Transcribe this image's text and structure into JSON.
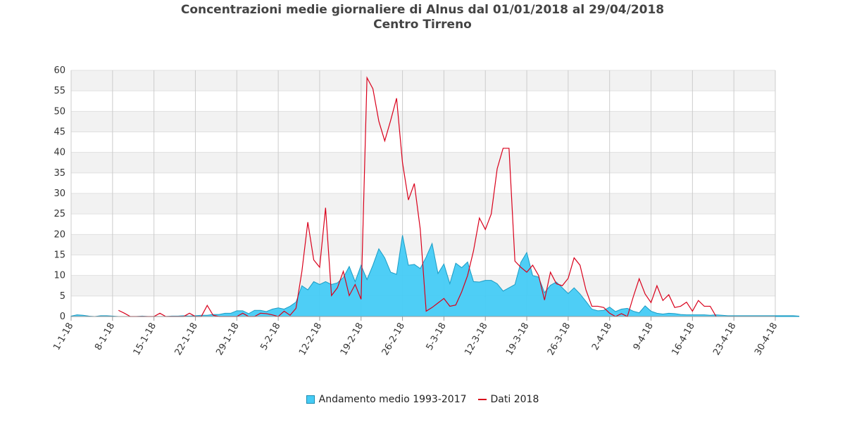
{
  "chart_data": {
    "type": "area",
    "title": "Concentrazioni medie giornaliere di Alnus dal 01/01/2018 al 29/04/2018",
    "subtitle": "Centro Tirreno",
    "ylim": [
      0,
      60
    ],
    "yticks": [
      0,
      5,
      10,
      15,
      20,
      25,
      30,
      35,
      40,
      45,
      50,
      55,
      60
    ],
    "x_start_date": "2018-01-01",
    "x_end_date": "2018-04-30",
    "xtick_labels": [
      "1-1-18",
      "8-1-18",
      "15-1-18",
      "22-1-18",
      "29-1-18",
      "5-2-18",
      "12-2-18",
      "19-2-18",
      "26-2-18",
      "5-3-18",
      "12-3-18",
      "19-3-18",
      "26-3-18",
      "2-4-18",
      "9-4-18",
      "16-4-18",
      "23-4-18",
      "30-4-18"
    ],
    "legend_position": "bottom-center",
    "grid": true,
    "series": [
      {
        "name": "Andamento medio 1993-2017",
        "kind": "area",
        "color": "#45cbf5",
        "stroke": "#1b9cc4",
        "values": [
          0.1,
          0.4,
          0.3,
          0.1,
          0.0,
          0.2,
          0.2,
          0.1,
          0.0,
          0.0,
          0.0,
          0.0,
          0.1,
          0.0,
          0.0,
          0.0,
          0.0,
          0.1,
          0.1,
          0.2,
          0.1,
          0.2,
          0.3,
          0.3,
          0.5,
          0.5,
          0.8,
          0.8,
          1.4,
          1.4,
          0.7,
          1.5,
          1.5,
          1.2,
          1.8,
          2.1,
          1.8,
          2.5,
          3.5,
          7.5,
          6.5,
          8.5,
          7.8,
          8.5,
          7.8,
          8.2,
          9.5,
          12.2,
          8.5,
          12.5,
          9.0,
          12.5,
          16.5,
          14.3,
          10.8,
          10.3,
          19.8,
          12.5,
          12.7,
          11.7,
          14.5,
          17.8,
          10.5,
          12.8,
          8.0,
          13.0,
          11.9,
          13.3,
          8.5,
          8.4,
          8.8,
          8.8,
          8.0,
          6.2,
          7.0,
          7.8,
          13.2,
          15.6,
          10.0,
          9.6,
          5.8,
          7.6,
          8.4,
          7.0,
          5.6,
          7.0,
          5.5,
          3.7,
          1.8,
          1.4,
          1.5,
          2.3,
          1.2,
          1.8,
          2.0,
          1.3,
          0.9,
          2.6,
          1.3,
          0.8,
          0.6,
          0.8,
          0.7,
          0.5,
          0.4,
          0.4,
          0.4,
          0.4,
          0.3,
          0.4,
          0.3,
          0.2,
          0.2,
          0.2,
          0.2,
          0.2,
          0.2,
          0.2,
          0.2,
          0.2,
          0.2,
          0.2,
          0.2,
          0.1
        ]
      },
      {
        "name": "Dati 2018",
        "kind": "line",
        "color": "#d9001b",
        "values": [
          null,
          null,
          null,
          null,
          null,
          null,
          null,
          null,
          1.5,
          0.8,
          0.0,
          0.0,
          0.0,
          0.0,
          0.0,
          0.8,
          0.0,
          0.0,
          0.0,
          0.0,
          0.8,
          0.0,
          0.0,
          2.7,
          0.3,
          0.0,
          0.0,
          0.0,
          0.0,
          0.8,
          0.0,
          0.0,
          0.8,
          0.7,
          0.4,
          0.0,
          1.3,
          0.3,
          2.0,
          11.0,
          23.0,
          13.8,
          12.0,
          26.5,
          5.1,
          7.0,
          11.0,
          5.1,
          7.8,
          4.2,
          58.2,
          55.5,
          47.6,
          42.8,
          47.8,
          53.2,
          37.5,
          28.4,
          32.4,
          21.3,
          1.3,
          2.2,
          3.3,
          4.4,
          2.5,
          2.8,
          6.0,
          10.0,
          16.0,
          24.0,
          21.2,
          25.0,
          36.0,
          41.0,
          41.0,
          13.5,
          12.0,
          10.8,
          12.5,
          10.0,
          4.0,
          10.8,
          8.0,
          7.5,
          9.3,
          14.3,
          12.5,
          6.5,
          2.5,
          2.5,
          2.2,
          0.8,
          0.0,
          0.7,
          0.0,
          4.8,
          9.2,
          5.5,
          3.4,
          7.5,
          3.9,
          5.3,
          2.2,
          2.5,
          3.5,
          1.3,
          3.9,
          2.5,
          2.5,
          0.0
        ]
      }
    ]
  }
}
